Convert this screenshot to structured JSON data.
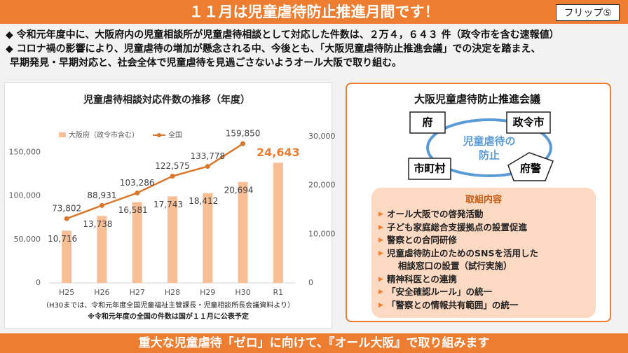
{
  "header": {
    "title": "１１月は児童虐待防止推進月間です！",
    "flip": "フリップ⑤"
  },
  "bullets": [
    [
      "令和元年度中に、大阪府内の児童相談所が児童虐待相談として対応した件数は、２万４，６４３ 件（政令市を含む速報値）"
    ],
    [
      "コロナ禍の影響により、児童虐待の増加が懸念される中、今後とも、「大阪児童虐待防止推進会議」での決定を踏まえ、",
      "早期発見・早期対応と、社会全体で児童虐待を見過ごさないようオール大阪で取り組む。"
    ]
  ],
  "chart_data": {
    "type": "bar-line",
    "title": "児童虐待相談対応件数の推移（年度）",
    "categories": [
      "H25",
      "H26",
      "H27",
      "H28",
      "H29",
      "H30",
      "R1"
    ],
    "series": [
      {
        "name": "大阪府（政令市含む）",
        "type": "bar",
        "axis": "y2",
        "color": "#f8bf96",
        "values": [
          10716,
          13738,
          16581,
          17743,
          18412,
          20694,
          24643
        ],
        "value_labels": [
          "10,716",
          "13,738",
          "16,581",
          "17,743",
          "18,412",
          "20,694",
          "24,643"
        ]
      },
      {
        "name": "全国",
        "type": "line",
        "axis": "y",
        "color": "#d9782d",
        "values": [
          73802,
          88931,
          103286,
          122575,
          133778,
          159850,
          null
        ],
        "value_labels": [
          "73,802",
          "88,931",
          "103,286",
          "122,575",
          "133,778",
          "159,850",
          null
        ]
      }
    ],
    "ylim": [
      0,
      168000
    ],
    "yticks": [
      0,
      {
        "value": 50000,
        "label": "50,000"
      },
      {
        "value": 100000,
        "label": "100,000"
      },
      {
        "value": 150000,
        "label": "150,000"
      }
    ],
    "y2lim": [
      0,
      30000
    ],
    "y2ticks": [
      0,
      {
        "value": 10000,
        "label": "10,000"
      },
      {
        "value": 20000,
        "label": "20,000"
      },
      {
        "value": 30000,
        "label": "30,000"
      }
    ],
    "grid": false,
    "legend": "top-left"
  },
  "chart_notes": [
    "（H30までは、令和元年度全国児童福祉主管課長・児童相談所長会議資料より）",
    "※令和元年度の全国の件数は国が１１月に公表予定"
  ],
  "council": {
    "title": "大阪児童虐待防止推進会議",
    "nodes": [
      "府",
      "政令市",
      "市町村",
      "府警"
    ],
    "center": [
      "児童虐待の",
      "防止"
    ],
    "measures_title": "取組内容",
    "measures": [
      [
        "オール大阪での啓発活動"
      ],
      [
        "子ども家庭総合支援拠点の設置促進"
      ],
      [
        "警察との合同研修"
      ],
      [
        "児童虐待防止のためのSNSを活用した",
        "相談窓口の設置（試行実施）"
      ],
      [
        "精神科医との連携"
      ],
      [
        "「安全確認ルール」の統一"
      ],
      [
        "「警察との情報共有範囲」の統一"
      ]
    ]
  },
  "footer": "重大な児童虐待「ゼロ」に向けて、『オール大阪』で取り組みます"
}
